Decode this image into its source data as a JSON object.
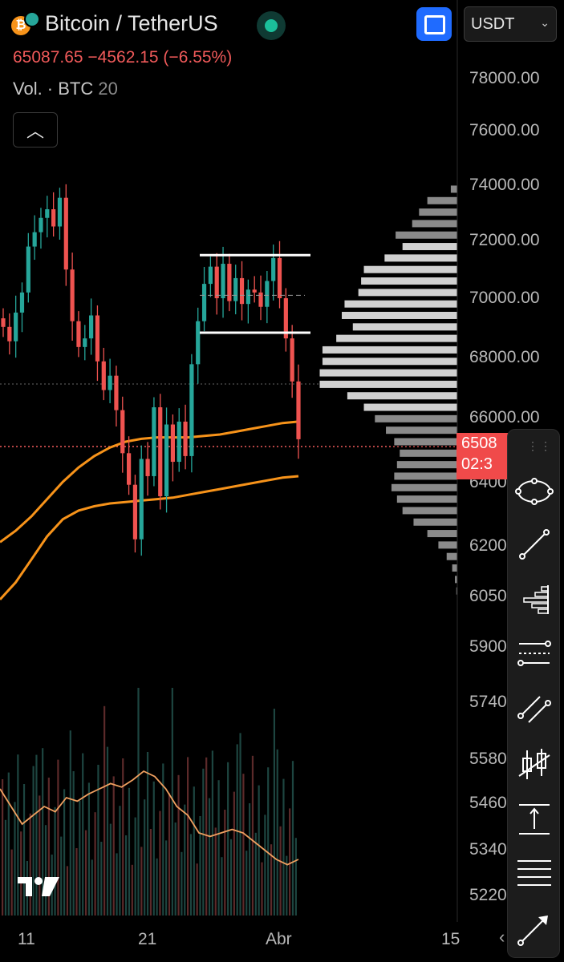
{
  "header": {
    "pair_title": "Bitcoin / TetherUS",
    "price_line": "65087.65 −4562.15 (−6.55%)",
    "volume_label": "Vol. · BTC",
    "volume_length": "20",
    "coin_icon": "bitcoin-icon",
    "coin_icon_glyph": "₿"
  },
  "controls": {
    "fullscreen_icon": "fullscreen-icon",
    "currency_select": "USDT",
    "collapse_icon": "chevron-up-icon",
    "collapse_glyph": "︿"
  },
  "price_axis": {
    "labels": [
      "78000.00",
      "76000.00",
      "74000.00",
      "72000.00",
      "70000.00",
      "68000.00",
      "66000.00",
      "6400",
      "6200",
      "6050",
      "5900",
      "5740",
      "5580",
      "5460",
      "5340",
      "5220"
    ]
  },
  "current_price": {
    "price": "6508",
    "countdown": "02:3"
  },
  "date_axis": {
    "labels": [
      "11",
      "21",
      "Abr",
      "15"
    ]
  },
  "colors": {
    "up": "#26a69a",
    "down": "#ef5350",
    "ma": "#f7931a",
    "accent_button": "#1f6bff",
    "price_tag": "#f04a4a"
  },
  "drawing_toolbar": {
    "items": [
      "ellipse-icon",
      "trend-line-icon",
      "volume-profile-icon",
      "fib-retracement-icon",
      "parallel-channel-icon",
      "long-short-position-icon",
      "price-range-icon",
      "horizontal-lines-icon",
      "arrow-icon"
    ]
  },
  "branding": {
    "logo": "tradingview-logo-icon"
  },
  "chart_data": {
    "type": "candlestick",
    "title": "Bitcoin / TetherUS",
    "x_ticks": [
      "11",
      "21",
      "Abr",
      "15"
    ],
    "y_range": [
      52000,
      79000
    ],
    "close_series": [
      69000,
      68500,
      69500,
      70200,
      71800,
      72300,
      72800,
      73100,
      72500,
      73500,
      71000,
      69200,
      68300,
      68600,
      69400,
      67800,
      66800,
      67300,
      66100,
      64600,
      63500,
      61600,
      64400,
      63800,
      66200,
      63100,
      65600,
      64300,
      65700,
      64500,
      67700,
      69200,
      70500,
      71100,
      70000,
      71200,
      69900,
      70700,
      69800,
      70300,
      70200,
      69700,
      70600,
      71400,
      70000,
      68600,
      67100,
      65087
    ],
    "ma_short": [
      61500,
      61900,
      62400,
      63000,
      63600,
      64100,
      64500,
      64800,
      65000,
      65100,
      65150,
      65150,
      65150,
      65200,
      65250,
      65350,
      65450,
      65550,
      65650,
      65700
    ],
    "ma_long": [
      59500,
      60100,
      60900,
      61700,
      62300,
      62600,
      62750,
      62850,
      62900,
      62950,
      63000,
      63050,
      63150,
      63250,
      63350,
      63450,
      63550,
      63650,
      63750,
      63800
    ],
    "horizontal_levels": [
      71500,
      68800
    ],
    "volume_ma": [
      0.55,
      0.45,
      0.35,
      0.4,
      0.45,
      0.42,
      0.5,
      0.48,
      0.52,
      0.55,
      0.58,
      0.56,
      0.6,
      0.65,
      0.62,
      0.55,
      0.45,
      0.4,
      0.3,
      0.28,
      0.3,
      0.32,
      0.3,
      0.25,
      0.2,
      0.15,
      0.12,
      0.15
    ],
    "volume_profile": {
      "price_levels": [
        73800,
        73400,
        73000,
        72600,
        72200,
        71800,
        71400,
        71000,
        70600,
        70200,
        69800,
        69400,
        69000,
        68600,
        68200,
        67800,
        67400,
        67000,
        66600,
        66200,
        65800,
        65400,
        65000,
        64600,
        64200,
        63800,
        63400,
        63000,
        62600,
        62200,
        61800,
        61400,
        61000,
        60600,
        60200,
        59800
      ],
      "values": [
        0.05,
        0.22,
        0.28,
        0.33,
        0.45,
        0.4,
        0.53,
        0.68,
        0.7,
        0.72,
        0.82,
        0.84,
        0.76,
        0.88,
        0.98,
        0.98,
        1.0,
        1.0,
        0.8,
        0.68,
        0.6,
        0.52,
        0.46,
        0.42,
        0.44,
        0.46,
        0.48,
        0.44,
        0.4,
        0.32,
        0.22,
        0.14,
        0.08,
        0.04,
        0.02,
        0.01
      ]
    }
  }
}
